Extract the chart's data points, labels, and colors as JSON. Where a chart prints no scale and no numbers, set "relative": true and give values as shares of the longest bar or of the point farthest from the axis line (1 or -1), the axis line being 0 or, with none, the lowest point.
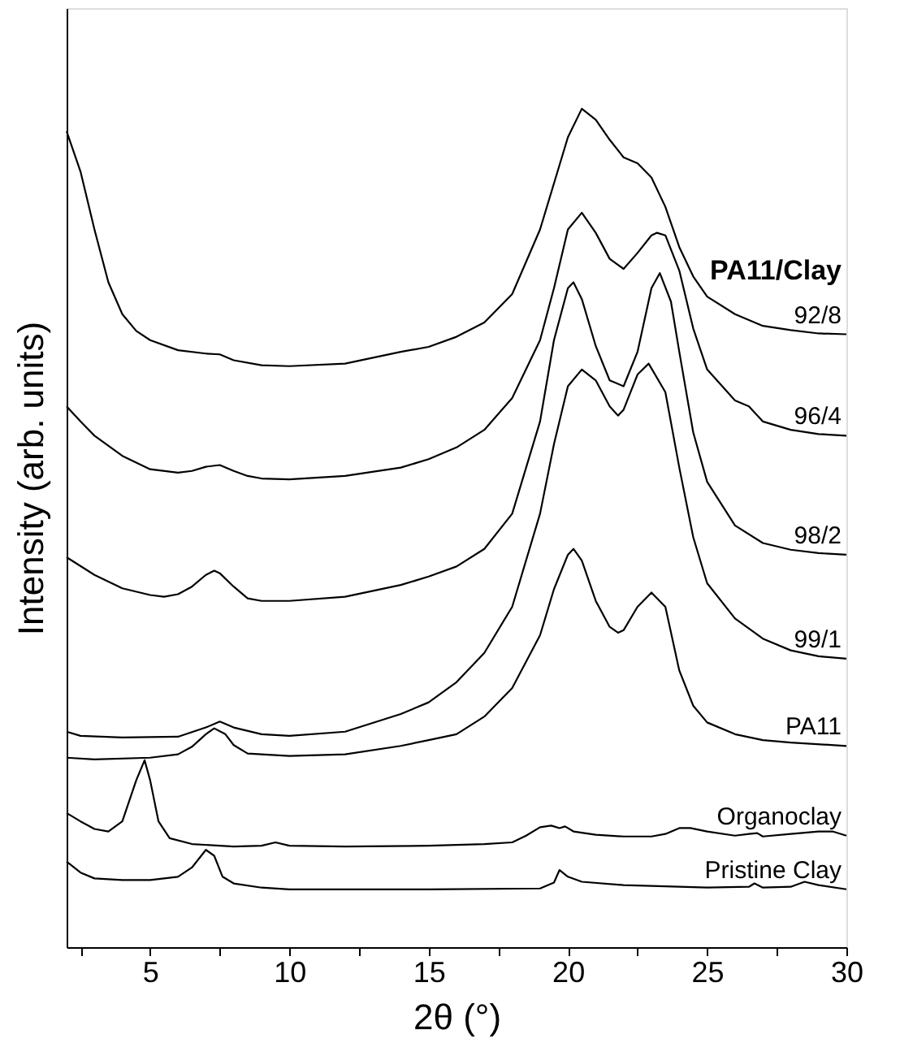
{
  "chart_data": {
    "type": "line",
    "relative": true,
    "xlabel": "2θ (°)",
    "ylabel": "Intensity (arb. units)",
    "legend_title": "PA11/Clay",
    "legend": false,
    "grid": false,
    "marker": "none",
    "line_style": "solid",
    "xlim": [
      2,
      30
    ],
    "xticks": [
      {
        "value": 2.5,
        "label": null
      },
      5,
      {
        "value": 7.5,
        "label": null
      },
      10,
      {
        "value": 12.5,
        "label": null
      },
      15,
      {
        "value": 17.5,
        "label": null
      },
      20,
      {
        "value": 22.5,
        "label": null
      },
      25,
      {
        "value": 27.5,
        "label": null
      },
      30
    ],
    "series": [
      {
        "name": "92/8",
        "color": "#000000",
        "x": [
          2,
          2.5,
          3,
          3.5,
          4,
          4.5,
          5,
          6,
          7,
          7.5,
          8,
          9,
          10,
          12,
          14,
          15,
          16,
          17,
          18,
          19,
          19.5,
          20,
          20.5,
          21,
          21.5,
          22,
          22.5,
          23,
          23.5,
          24,
          24.5,
          25,
          26,
          27,
          28,
          29,
          30
        ],
        "values": [
          0.973,
          0.925,
          0.856,
          0.793,
          0.755,
          0.735,
          0.724,
          0.712,
          0.708,
          0.707,
          0.7,
          0.694,
          0.693,
          0.696,
          0.71,
          0.716,
          0.728,
          0.745,
          0.779,
          0.856,
          0.911,
          0.966,
          1.0,
          0.987,
          0.963,
          0.942,
          0.935,
          0.918,
          0.883,
          0.835,
          0.8,
          0.776,
          0.755,
          0.741,
          0.736,
          0.732,
          0.731
        ]
      },
      {
        "name": "96/4",
        "color": "#000000",
        "x": [
          2,
          2.5,
          3,
          4,
          5,
          6,
          6.5,
          7,
          7.5,
          8,
          8.5,
          9,
          10,
          12,
          14,
          15,
          16,
          17,
          18,
          19,
          19.5,
          20,
          20.5,
          21,
          21.5,
          22,
          22.5,
          23,
          23.2,
          23.5,
          24,
          24.5,
          25,
          26,
          26.5,
          27,
          28,
          29,
          30
        ],
        "values": [
          0.645,
          0.627,
          0.61,
          0.586,
          0.57,
          0.566,
          0.568,
          0.573,
          0.575,
          0.568,
          0.562,
          0.559,
          0.558,
          0.562,
          0.572,
          0.582,
          0.596,
          0.617,
          0.655,
          0.724,
          0.786,
          0.856,
          0.876,
          0.852,
          0.821,
          0.809,
          0.828,
          0.849,
          0.852,
          0.849,
          0.807,
          0.738,
          0.689,
          0.652,
          0.645,
          0.627,
          0.617,
          0.612,
          0.61
        ]
      },
      {
        "name": "98/2",
        "color": "#000000",
        "x": [
          2,
          3,
          4,
          5,
          5.5,
          6,
          6.5,
          7,
          7.3,
          7.5,
          8,
          8.5,
          9,
          10,
          12,
          14,
          15,
          16,
          17,
          18,
          19,
          19.5,
          20,
          20.2,
          20.5,
          21,
          21.5,
          22,
          22.5,
          23,
          23.3,
          23.7,
          24,
          24.5,
          25,
          26,
          27,
          28,
          29,
          30
        ],
        "values": [
          0.465,
          0.444,
          0.428,
          0.42,
          0.418,
          0.421,
          0.43,
          0.444,
          0.449,
          0.446,
          0.43,
          0.416,
          0.413,
          0.413,
          0.418,
          0.432,
          0.442,
          0.454,
          0.475,
          0.517,
          0.627,
          0.724,
          0.786,
          0.793,
          0.773,
          0.717,
          0.676,
          0.669,
          0.71,
          0.786,
          0.804,
          0.77,
          0.71,
          0.614,
          0.555,
          0.503,
          0.482,
          0.474,
          0.47,
          0.468
        ]
      },
      {
        "name": "99/1",
        "color": "#000000",
        "x": [
          2,
          2.5,
          4,
          6,
          7,
          7.5,
          8,
          9,
          10,
          12,
          14,
          15,
          16,
          17,
          18,
          19,
          19.5,
          20,
          20.5,
          21,
          21.5,
          21.8,
          22,
          22.5,
          22.9,
          23.5,
          24,
          24.5,
          25,
          26,
          27,
          28,
          29,
          30
        ],
        "values": [
          0.257,
          0.252,
          0.25,
          0.251,
          0.262,
          0.269,
          0.262,
          0.254,
          0.252,
          0.257,
          0.278,
          0.292,
          0.316,
          0.351,
          0.406,
          0.517,
          0.6,
          0.669,
          0.689,
          0.676,
          0.645,
          0.634,
          0.641,
          0.683,
          0.696,
          0.662,
          0.572,
          0.489,
          0.434,
          0.392,
          0.368,
          0.354,
          0.347,
          0.344
        ]
      },
      {
        "name": "PA11",
        "color": "#000000",
        "x": [
          2,
          3,
          5,
          6,
          6.5,
          7,
          7.3,
          7.7,
          8,
          8.5,
          10,
          12,
          14,
          15,
          16,
          17,
          18,
          19,
          19.5,
          20,
          20.2,
          20.5,
          21,
          21.5,
          21.8,
          22,
          22.5,
          23,
          23.5,
          24,
          24.5,
          25,
          26,
          27,
          28,
          30
        ],
        "values": [
          0.226,
          0.224,
          0.226,
          0.23,
          0.239,
          0.254,
          0.261,
          0.254,
          0.241,
          0.231,
          0.228,
          0.23,
          0.24,
          0.247,
          0.254,
          0.275,
          0.309,
          0.372,
          0.427,
          0.468,
          0.475,
          0.461,
          0.413,
          0.382,
          0.375,
          0.378,
          0.406,
          0.423,
          0.406,
          0.33,
          0.288,
          0.268,
          0.254,
          0.247,
          0.244,
          0.24
        ]
      },
      {
        "name": "Organoclay",
        "color": "#000000",
        "x": [
          2,
          2.5,
          3,
          3.5,
          4,
          4.5,
          4.8,
          5,
          5.3,
          5.7,
          6.5,
          8,
          9,
          9.5,
          10,
          12,
          15,
          17,
          18,
          18.5,
          19,
          19.4,
          19.7,
          19.9,
          20.2,
          21,
          22,
          23,
          23.5,
          24,
          24.4,
          25,
          26,
          26.5,
          26.8,
          27,
          28,
          29,
          29.5,
          30
        ],
        "values": [
          0.16,
          0.15,
          0.141,
          0.138,
          0.15,
          0.199,
          0.223,
          0.199,
          0.15,
          0.13,
          0.123,
          0.12,
          0.121,
          0.125,
          0.121,
          0.12,
          0.121,
          0.123,
          0.125,
          0.133,
          0.143,
          0.145,
          0.142,
          0.144,
          0.138,
          0.134,
          0.132,
          0.132,
          0.135,
          0.142,
          0.142,
          0.138,
          0.133,
          0.135,
          0.136,
          0.132,
          0.135,
          0.138,
          0.138,
          0.133
        ]
      },
      {
        "name": "Pristine Clay",
        "color": "#000000",
        "x": [
          2,
          2.5,
          3,
          4,
          5,
          6,
          6.5,
          7,
          7.3,
          7.6,
          8,
          9,
          10,
          15,
          19,
          19.5,
          19.7,
          20,
          20.5,
          22,
          25,
          26.5,
          26.7,
          27,
          28,
          28.5,
          29,
          30
        ],
        "values": [
          0.102,
          0.089,
          0.082,
          0.08,
          0.08,
          0.084,
          0.095,
          0.116,
          0.109,
          0.084,
          0.076,
          0.071,
          0.069,
          0.069,
          0.07,
          0.077,
          0.092,
          0.084,
          0.078,
          0.074,
          0.071,
          0.072,
          0.076,
          0.071,
          0.072,
          0.078,
          0.074,
          0.069
        ]
      }
    ]
  }
}
